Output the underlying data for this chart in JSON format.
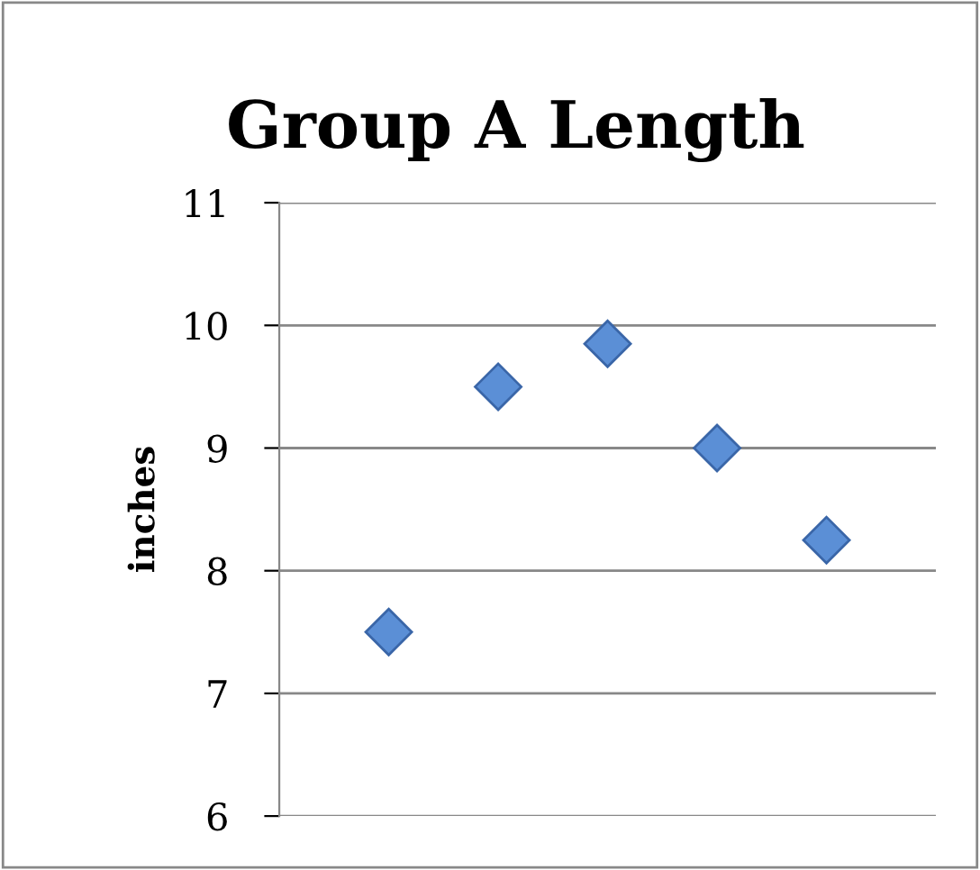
{
  "chart_data": {
    "type": "scatter",
    "title": "Group A Length",
    "ylabel": "inches",
    "categories": [
      null,
      null,
      null,
      null,
      null
    ],
    "series": [
      {
        "color": "#5b8fd6",
        "values": [
          7.5,
          9.5,
          9.85,
          9.0,
          8.25
        ]
      }
    ],
    "ylim": [
      6,
      11
    ],
    "yticks": [
      6,
      7,
      8,
      9,
      10,
      11
    ],
    "grid": "y",
    "marker": "diamond",
    "legend": false
  }
}
